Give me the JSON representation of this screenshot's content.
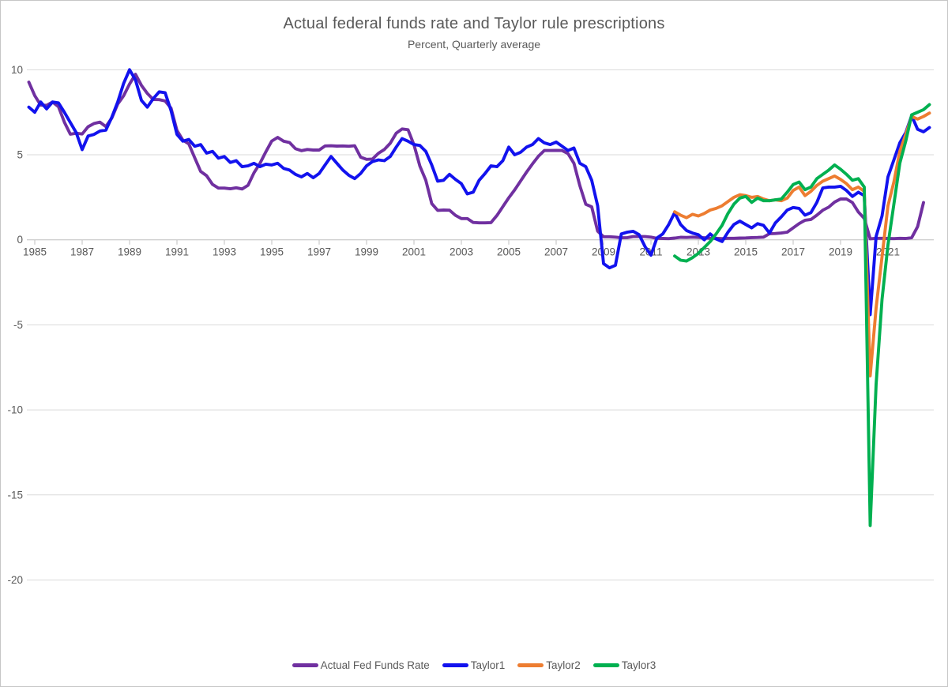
{
  "title": "Actual federal funds rate and Taylor rule prescriptions",
  "subtitle": "Percent, Quarterly average",
  "chart_data": {
    "type": "line",
    "title": "Actual federal funds rate and Taylor rule prescriptions",
    "subtitle": "Percent, Quarterly average",
    "xlabel": "",
    "ylabel": "",
    "x_unit": "quarterly",
    "x_tick_years": [
      1985,
      1987,
      1989,
      1991,
      1993,
      1995,
      1997,
      1999,
      2001,
      2003,
      2005,
      2007,
      2009,
      2011,
      2013,
      2015,
      2017,
      2019,
      2021
    ],
    "y_ticks": [
      10,
      5,
      0,
      -5,
      -10,
      -15,
      -20
    ],
    "ylim": [
      -20,
      10
    ],
    "grid": true,
    "legend_position": "bottom",
    "colors": {
      "grid": "#D9D9D9",
      "axis": "#BFBFBF",
      "text": "#595959"
    },
    "series": [
      {
        "name": "Actual Fed Funds Rate",
        "color": "#7030A0",
        "first_quarter": "1984Q4",
        "values": [
          9.27,
          8.48,
          7.92,
          7.9,
          8.1,
          7.83,
          6.92,
          6.21,
          6.27,
          6.22,
          6.65,
          6.84,
          6.92,
          6.66,
          7.16,
          7.98,
          8.47,
          9.16,
          9.73,
          9.08,
          8.61,
          8.25,
          8.24,
          8.16,
          7.74,
          6.43,
          5.86,
          5.64,
          4.82,
          4.02,
          3.77,
          3.26,
          3.04,
          3.04,
          3.0,
          3.06,
          2.99,
          3.21,
          3.94,
          4.49,
          5.17,
          5.81,
          6.02,
          5.8,
          5.72,
          5.36,
          5.24,
          5.31,
          5.28,
          5.28,
          5.52,
          5.53,
          5.51,
          5.52,
          5.5,
          5.53,
          4.86,
          4.73,
          4.75,
          5.09,
          5.31,
          5.68,
          6.27,
          6.52,
          6.47,
          5.59,
          4.33,
          3.5,
          2.13,
          1.73,
          1.75,
          1.74,
          1.44,
          1.25,
          1.25,
          1.02,
          1.0,
          1.0,
          1.01,
          1.43,
          1.95,
          2.47,
          2.94,
          3.46,
          3.98,
          4.46,
          4.91,
          5.25,
          5.25,
          5.26,
          5.25,
          5.07,
          4.5,
          3.18,
          2.09,
          1.94,
          0.51,
          0.18,
          0.18,
          0.16,
          0.12,
          0.13,
          0.19,
          0.19,
          0.19,
          0.16,
          0.09,
          0.08,
          0.07,
          0.1,
          0.15,
          0.14,
          0.16,
          0.14,
          0.12,
          0.09,
          0.09,
          0.07,
          0.09,
          0.09,
          0.1,
          0.11,
          0.13,
          0.14,
          0.16,
          0.36,
          0.37,
          0.4,
          0.45,
          0.7,
          0.95,
          1.15,
          1.2,
          1.45,
          1.74,
          1.92,
          2.22,
          2.4,
          2.4,
          2.19,
          1.64,
          1.26,
          0.06,
          0.09,
          0.09,
          0.08,
          0.07,
          0.09,
          0.08,
          0.12,
          0.77,
          2.19
        ]
      },
      {
        "name": "Taylor1",
        "color": "#1212EE",
        "first_quarter": "1984Q4",
        "values": [
          7.8,
          7.5,
          8.1,
          7.7,
          8.1,
          8.05,
          7.5,
          6.9,
          6.3,
          5.3,
          6.1,
          6.2,
          6.4,
          6.45,
          7.2,
          8.1,
          9.2,
          10.0,
          9.4,
          8.2,
          7.8,
          8.3,
          8.7,
          8.65,
          7.6,
          6.2,
          5.8,
          5.9,
          5.5,
          5.6,
          5.1,
          5.2,
          4.8,
          4.9,
          4.55,
          4.65,
          4.3,
          4.35,
          4.5,
          4.3,
          4.45,
          4.4,
          4.5,
          4.2,
          4.1,
          3.85,
          3.7,
          3.9,
          3.65,
          3.9,
          4.4,
          4.9,
          4.5,
          4.1,
          3.8,
          3.6,
          3.9,
          4.35,
          4.6,
          4.7,
          4.65,
          4.9,
          5.45,
          5.95,
          5.8,
          5.6,
          5.55,
          5.2,
          4.4,
          3.45,
          3.5,
          3.85,
          3.55,
          3.3,
          2.7,
          2.8,
          3.5,
          3.9,
          4.35,
          4.3,
          4.65,
          5.45,
          5.0,
          5.15,
          5.45,
          5.6,
          5.95,
          5.7,
          5.6,
          5.75,
          5.5,
          5.25,
          5.4,
          4.5,
          4.3,
          3.5,
          2.0,
          -1.4,
          -1.65,
          -1.5,
          0.35,
          0.45,
          0.5,
          0.3,
          -0.4,
          -0.9,
          0.1,
          0.35,
          0.9,
          1.6,
          0.9,
          0.55,
          0.4,
          0.3,
          0.0,
          0.35,
          0.05,
          -0.1,
          0.45,
          0.9,
          1.1,
          0.9,
          0.7,
          0.95,
          0.85,
          0.4,
          1.0,
          1.35,
          1.75,
          1.9,
          1.85,
          1.45,
          1.6,
          2.2,
          3.05,
          3.1,
          3.1,
          3.15,
          2.9,
          2.55,
          2.8,
          2.6,
          -4.4,
          0.2,
          1.4,
          3.7,
          4.7,
          5.7,
          6.3,
          7.3,
          6.5,
          6.35,
          6.6
        ]
      },
      {
        "name": "Taylor2",
        "color": "#ED7D31",
        "first_quarter": "2012Q1",
        "values": [
          1.65,
          1.45,
          1.3,
          1.5,
          1.4,
          1.55,
          1.75,
          1.85,
          2.0,
          2.25,
          2.5,
          2.65,
          2.6,
          2.5,
          2.55,
          2.4,
          2.3,
          2.35,
          2.3,
          2.45,
          2.9,
          3.1,
          2.6,
          2.85,
          3.2,
          3.45,
          3.6,
          3.75,
          3.55,
          3.3,
          2.95,
          3.1,
          2.85,
          -8.0,
          -4.0,
          -1.0,
          2.0,
          3.4,
          5.2,
          6.2,
          7.25,
          7.1,
          7.25,
          7.45
        ]
      },
      {
        "name": "Taylor3",
        "color": "#00B050",
        "first_quarter": "2012Q1",
        "values": [
          -0.95,
          -1.2,
          -1.25,
          -1.05,
          -0.8,
          -0.45,
          -0.1,
          0.35,
          0.85,
          1.55,
          2.1,
          2.45,
          2.55,
          2.2,
          2.45,
          2.3,
          2.3,
          2.35,
          2.4,
          2.8,
          3.25,
          3.4,
          2.95,
          3.1,
          3.6,
          3.85,
          4.1,
          4.4,
          4.15,
          3.85,
          3.5,
          3.6,
          3.1,
          -16.8,
          -8.5,
          -3.5,
          -0.3,
          2.1,
          4.5,
          5.8,
          7.35,
          7.5,
          7.65,
          7.95
        ]
      }
    ]
  }
}
